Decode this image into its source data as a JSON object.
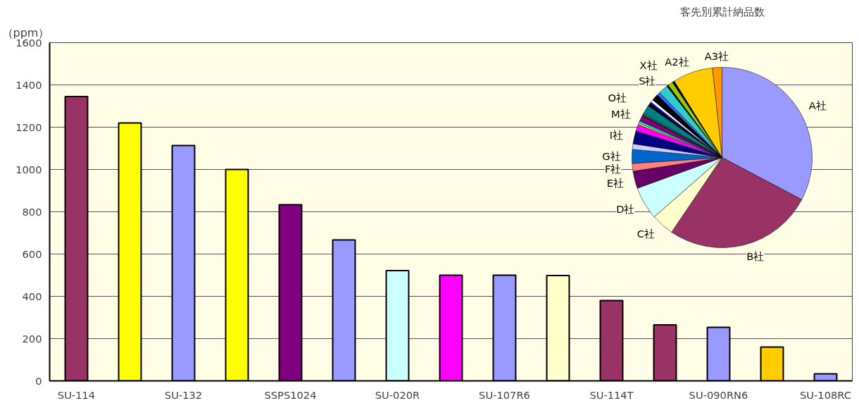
{
  "chart_data": [
    {
      "type": "bar",
      "ylabel": "（ppm）",
      "categories": [
        "SU-114",
        null,
        "SU-132",
        null,
        "SSPS1024",
        null,
        "SU-020R",
        null,
        "SU-107R6",
        null,
        "SU-114T",
        null,
        "SU-090RN6",
        null,
        "SU-108RC"
      ],
      "values": [
        1345,
        1220,
        1113,
        1000,
        833,
        667,
        522,
        500,
        500,
        498,
        380,
        265,
        253,
        160,
        33
      ],
      "colors": [
        "#993366",
        "#ffff00",
        "#9999ff",
        "#ffff00",
        "#800080",
        "#9999ff",
        "#ccffff",
        "#ff00ff",
        "#9999ff",
        "#ffffcc",
        "#993366",
        "#993366",
        "#9999ff",
        "#ffcc00",
        "#9999ff"
      ],
      "ylim": [
        0,
        1600
      ],
      "yticks": [
        0,
        200,
        400,
        600,
        800,
        1000,
        1200,
        1400,
        1600
      ],
      "grid": "y"
    },
    {
      "type": "pie",
      "title": "客先別累計納品数",
      "categories": [
        "A社",
        "B社",
        "C社",
        "D社",
        "E社",
        "F社",
        "G社",
        null,
        "I社",
        null,
        null,
        null,
        "M社",
        null,
        null,
        "O社",
        null,
        null,
        null,
        null,
        null,
        "S社",
        null,
        "X社",
        null,
        "A2社",
        "A3社"
      ],
      "values": [
        32.8,
        26.8,
        4.1,
        5.9,
        3.1,
        1.4,
        2.5,
        1.0,
        2.3,
        1.2,
        0.3,
        0.4,
        1.0,
        0.2,
        0.3,
        1.6,
        0.5,
        0.3,
        0.5,
        1.2,
        0.6,
        1.7,
        0.3,
        0.9,
        0.4,
        7.2,
        1.7
      ],
      "colors": [
        "#9999ff",
        "#993366",
        "#ffffcc",
        "#ccffff",
        "#660066",
        "#ff8080",
        "#0066cc",
        "#ccccff",
        "#000080",
        "#ff00ff",
        "#ffff00",
        "#00ffff",
        "#800080",
        "#800000",
        "#008080",
        "#008080",
        "#000000",
        "#0000ff",
        "#ffffff",
        "#000000",
        "#3366ff",
        "#33cccc",
        "#000000",
        "#99cc00",
        "#000000",
        "#ffcc00",
        "#ff9900"
      ]
    }
  ]
}
